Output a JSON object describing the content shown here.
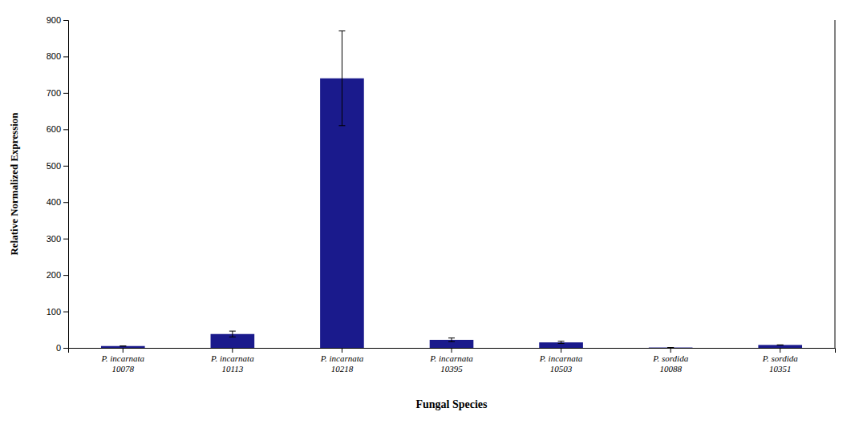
{
  "chart_data": {
    "type": "bar",
    "categories": [
      "P. incarnata\n10078",
      "P. incarnata\n10113",
      "P. incarnata\n10218",
      "P. incarnata\n10395",
      "P. incarnata\n10503",
      "P. sordida\n10088",
      "P. sordida\n10351"
    ],
    "values": [
      5,
      38,
      740,
      22,
      15,
      1,
      8
    ],
    "errors": [
      0,
      8,
      130,
      5,
      3,
      0,
      0
    ],
    "color": "#1a1a8c",
    "xlabel": "Fungal Species",
    "ylabel": "Relative Normalized Expression",
    "ylim": [
      0,
      900
    ],
    "yticks": [
      0,
      100,
      200,
      300,
      400,
      500,
      600,
      700,
      800,
      900
    ],
    "grid": false
  }
}
